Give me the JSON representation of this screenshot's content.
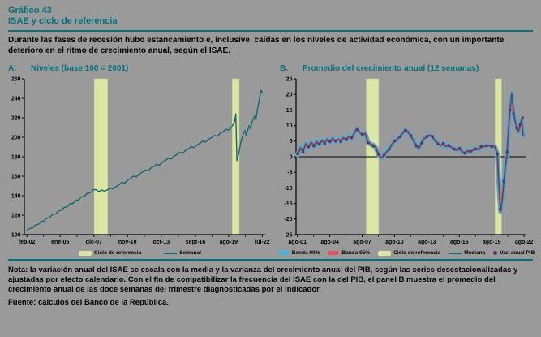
{
  "header": {
    "figure_label": "Gráfico 43",
    "figure_title": "ISAE y ciclo de referencia",
    "description": "Durante las fases de recesión hubo estancamiento e, inclusive, caídas en los niveles de actividad económica, con un importante deterioro en el ritmo de crecimiento anual, según el ISAE."
  },
  "footer": {
    "note": "Nota: la variación anual del ISAE se escala con la media y la varianza del crecimiento anual del PIB, según las series desestacionalizadas y ajustadas por efecto calendario. Con el fin de compatibilizar la frecuencia del ISAE con la del PIB, el panel B muestra el promedio del crecimiento anual de las doce semanas del trimestre diagnosticadas por el indicador.",
    "source": "Fuente: cálculos del Banco de la República."
  },
  "colors": {
    "background": "#9a9a9a",
    "accent_teal": "#00737e",
    "recession_band": "#dce6a4",
    "recession_band_edge": "#c8d58a",
    "band_90": "#3db5e6",
    "band_95": "#e25566",
    "line_teal": "#176570",
    "pib_purple": "#5c3363",
    "axis": "#000000"
  },
  "chart_data": [
    {
      "id": "A",
      "panel_label": "A.",
      "title": "Niveles (base 100 = 2001)",
      "type": "line",
      "xlim": [
        2001.9,
        2022.75
      ],
      "ylim": [
        100,
        260
      ],
      "y_ticks": [
        260,
        240,
        220,
        200,
        180,
        160,
        140,
        120,
        100
      ],
      "x_ticks": [
        {
          "label": "feb-02",
          "pos": 2002.12
        },
        {
          "label": "ene-05",
          "pos": 2005.0
        },
        {
          "label": "dic-07",
          "pos": 2007.92
        },
        {
          "label": "nov-10",
          "pos": 2010.83
        },
        {
          "label": "oct-13",
          "pos": 2013.75
        },
        {
          "label": "sept-16",
          "pos": 2016.71
        },
        {
          "label": "ago-19",
          "pos": 2019.58
        },
        {
          "label": "jul-22",
          "pos": 2022.5
        }
      ],
      "recession_bands": [
        [
          2007.95,
          2009.1
        ],
        [
          2019.9,
          2020.5
        ]
      ],
      "zero_line": false,
      "x": [
        2002.1,
        2002.35,
        2002.6,
        2002.85,
        2003.1,
        2003.35,
        2003.6,
        2003.85,
        2004.1,
        2004.35,
        2004.6,
        2004.85,
        2005.1,
        2005.35,
        2005.6,
        2005.85,
        2006.1,
        2006.35,
        2006.6,
        2006.85,
        2007.1,
        2007.35,
        2007.6,
        2007.85,
        2008.1,
        2008.35,
        2008.6,
        2008.85,
        2009.1,
        2009.35,
        2009.6,
        2009.85,
        2010.1,
        2010.35,
        2010.6,
        2010.85,
        2011.1,
        2011.35,
        2011.6,
        2011.85,
        2012.1,
        2012.35,
        2012.6,
        2012.85,
        2013.1,
        2013.35,
        2013.6,
        2013.85,
        2014.1,
        2014.35,
        2014.6,
        2014.85,
        2015.1,
        2015.35,
        2015.6,
        2015.85,
        2016.1,
        2016.35,
        2016.6,
        2016.85,
        2017.1,
        2017.35,
        2017.6,
        2017.85,
        2018.1,
        2018.35,
        2018.6,
        2018.85,
        2019.1,
        2019.35,
        2019.6,
        2019.85,
        2020.1,
        2020.2,
        2020.3,
        2020.45,
        2020.6,
        2020.85,
        2021.0,
        2021.1,
        2021.35,
        2021.5,
        2021.6,
        2021.85,
        2021.95,
        2022.1,
        2022.2,
        2022.3,
        2022.4,
        2022.5
      ],
      "series": [
        {
          "name": "Semanal",
          "role": "median",
          "color": "#176570",
          "y": [
            103.8,
            106.3,
            106.7,
            109.8,
            110.4,
            113.5,
            114.0,
            117.1,
            117.6,
            120.9,
            121.2,
            124.4,
            124.8,
            128.0,
            128.4,
            131.7,
            132.1,
            135.3,
            135.7,
            139.0,
            139.3,
            142.6,
            143.0,
            146.1,
            146.3,
            144.2,
            145.8,
            144.6,
            146.2,
            147.6,
            147.0,
            149.4,
            151.2,
            153.7,
            153.0,
            156.1,
            157.8,
            160.2,
            159.4,
            162.4,
            164.0,
            166.3,
            165.5,
            168.4,
            170.0,
            172.2,
            171.4,
            174.4,
            176.0,
            178.5,
            177.6,
            180.7,
            182.2,
            184.5,
            183.6,
            186.6,
            188.1,
            190.3,
            189.4,
            192.3,
            193.8,
            196.0,
            195.1,
            198.0,
            199.5,
            201.9,
            201.0,
            204.1,
            205.6,
            208.2,
            207.3,
            210.6,
            216.0,
            224.0,
            176.0,
            183.0,
            193.0,
            203.5,
            207.0,
            201.5,
            212.0,
            208.5,
            215.5,
            222.0,
            218.5,
            230.5,
            236.0,
            243.0,
            248.0,
            246.0
          ]
        }
      ],
      "legend": [
        {
          "label": "Ciclo de referencia",
          "swatch": "band",
          "color": "#dce6a4"
        },
        {
          "label": "Semanal",
          "swatch": "line",
          "color": "#176570"
        }
      ]
    },
    {
      "id": "B",
      "panel_label": "B.",
      "title": "Promedio del crecimiento anual (12 semanas)",
      "type": "line",
      "xlim": [
        2001.45,
        2022.8
      ],
      "ylim": [
        -25,
        25
      ],
      "y_ticks": [
        25,
        20,
        15,
        10,
        5,
        0,
        -5,
        -10,
        -15,
        -20,
        -25
      ],
      "x_ticks": [
        {
          "label": "ago-01",
          "pos": 2001.58
        },
        {
          "label": "ago-04",
          "pos": 2004.58
        },
        {
          "label": "ago-07",
          "pos": 2007.58
        },
        {
          "label": "ago-10",
          "pos": 2010.58
        },
        {
          "label": "ago-13",
          "pos": 2013.58
        },
        {
          "label": "ago-16",
          "pos": 2016.58
        },
        {
          "label": "ago-19",
          "pos": 2019.58
        },
        {
          "label": "ago-22",
          "pos": 2022.58
        }
      ],
      "recession_bands": [
        [
          2007.95,
          2009.1
        ],
        [
          2019.9,
          2020.5
        ]
      ],
      "zero_line": true,
      "x": [
        2001.6,
        2001.85,
        2002.1,
        2002.35,
        2002.6,
        2002.85,
        2003.1,
        2003.35,
        2003.6,
        2003.85,
        2004.1,
        2004.35,
        2004.6,
        2004.85,
        2005.1,
        2005.35,
        2005.6,
        2005.85,
        2006.1,
        2006.35,
        2006.6,
        2006.85,
        2007.1,
        2007.35,
        2007.6,
        2007.85,
        2008.1,
        2008.35,
        2008.6,
        2008.85,
        2009.1,
        2009.35,
        2009.6,
        2009.85,
        2010.1,
        2010.35,
        2010.6,
        2010.85,
        2011.1,
        2011.35,
        2011.6,
        2011.85,
        2012.1,
        2012.35,
        2012.6,
        2012.85,
        2013.1,
        2013.35,
        2013.6,
        2013.85,
        2014.1,
        2014.35,
        2014.6,
        2014.85,
        2015.1,
        2015.35,
        2015.6,
        2015.85,
        2016.1,
        2016.35,
        2016.6,
        2016.85,
        2017.1,
        2017.35,
        2017.6,
        2017.85,
        2018.1,
        2018.35,
        2018.6,
        2018.85,
        2019.1,
        2019.35,
        2019.6,
        2019.85,
        2020.1,
        2020.25,
        2020.4,
        2020.55,
        2020.7,
        2020.85,
        2021.0,
        2021.15,
        2021.3,
        2021.45,
        2021.6,
        2021.75,
        2021.9,
        2022.05,
        2022.2,
        2022.35,
        2022.5
      ],
      "series": [
        {
          "name": "Banda 90%",
          "role": "band-outer",
          "color": "#3db5e6"
        },
        {
          "name": "Banda 95%",
          "role": "band-inner",
          "color": "#e25566"
        },
        {
          "name": "Mediana",
          "role": "median",
          "color": "#176570",
          "y": [
            0.6,
            2.8,
            1.6,
            4.2,
            3.0,
            4.6,
            3.6,
            4.8,
            3.9,
            5.2,
            4.4,
            5.6,
            4.7,
            5.9,
            4.8,
            5.6,
            5.0,
            6.1,
            5.3,
            6.6,
            5.9,
            7.6,
            8.9,
            7.8,
            7.0,
            7.5,
            4.7,
            4.1,
            3.7,
            2.9,
            0.6,
            -0.4,
            0.3,
            1.6,
            2.6,
            4.1,
            4.9,
            5.6,
            6.6,
            7.6,
            8.7,
            7.9,
            6.6,
            5.1,
            3.6,
            2.7,
            4.6,
            5.9,
            6.4,
            6.9,
            6.3,
            5.1,
            4.3,
            3.6,
            4.1,
            3.3,
            3.8,
            3.0,
            2.6,
            2.1,
            2.5,
            1.6,
            1.3,
            1.9,
            1.5,
            2.1,
            2.7,
            2.3,
            3.1,
            3.3,
            3.7,
            3.5,
            3.4,
            3.3,
            1.0,
            -9.0,
            -17.5,
            -14.0,
            -8.5,
            -3.0,
            0.5,
            9.0,
            15.5,
            20.3,
            14.5,
            11.5,
            9.5,
            8.0,
            9.8,
            12.0,
            6.8
          ]
        },
        {
          "name": "Var. anual PIB",
          "role": "dots",
          "color": "#5c3363",
          "x": [
            2001.6,
            2002.1,
            2002.6,
            2003.1,
            2003.6,
            2004.1,
            2004.6,
            2005.1,
            2005.6,
            2006.1,
            2006.6,
            2007.1,
            2007.6,
            2008.1,
            2008.6,
            2009.1,
            2009.6,
            2010.1,
            2010.6,
            2011.1,
            2011.6,
            2012.1,
            2012.6,
            2013.1,
            2013.6,
            2014.1,
            2014.6,
            2015.1,
            2015.6,
            2016.1,
            2016.6,
            2017.1,
            2017.6,
            2018.1,
            2018.6,
            2019.1,
            2019.6,
            2020.1,
            2020.4,
            2020.7,
            2021.0,
            2021.3,
            2021.6,
            2021.9,
            2022.2,
            2022.45
          ],
          "y": [
            0.9,
            1.4,
            3.2,
            3.4,
            4.1,
            4.2,
            4.9,
            5.0,
            4.8,
            5.5,
            6.1,
            8.7,
            7.2,
            4.5,
            3.5,
            0.8,
            0.5,
            2.4,
            5.1,
            6.4,
            8.5,
            6.8,
            3.4,
            4.4,
            6.6,
            6.5,
            4.1,
            4.3,
            3.6,
            2.4,
            2.7,
            1.1,
            1.7,
            2.5,
            3.3,
            3.5,
            3.2,
            0.8,
            -16.8,
            -7.8,
            1.5,
            15.0,
            13.8,
            9.2,
            10.2,
            12.5
          ]
        }
      ],
      "legend": [
        {
          "label": "Banda 90%",
          "swatch": "pill",
          "color": "#3db5e6"
        },
        {
          "label": "Banda 95%",
          "swatch": "pill",
          "color": "#e25566"
        },
        {
          "label": "Ciclo de referencia",
          "swatch": "band",
          "color": "#dce6a4"
        },
        {
          "label": "Mediana",
          "swatch": "line",
          "color": "#176570"
        },
        {
          "label": "Var. anual PIB",
          "swatch": "dot",
          "color": "#5c3363"
        }
      ]
    }
  ]
}
